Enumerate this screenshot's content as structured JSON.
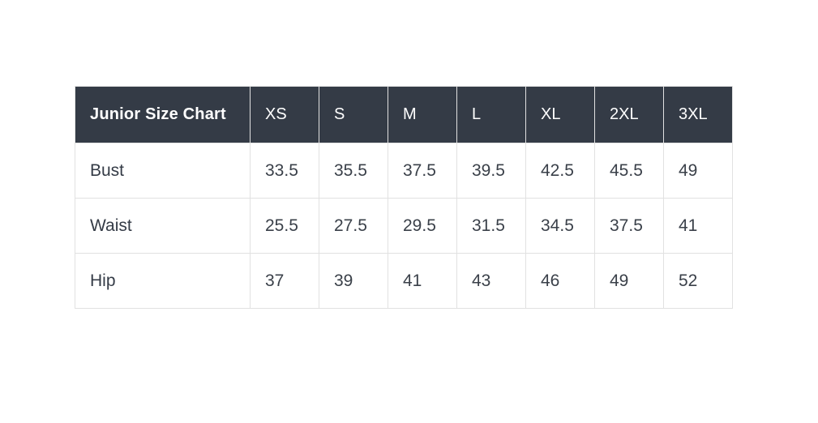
{
  "chart_data": {
    "type": "table",
    "title": "Junior Size Chart",
    "columns": [
      "Junior Size Chart",
      "XS",
      "S",
      "M",
      "L",
      "XL",
      "2XL",
      "3XL"
    ],
    "rows": [
      {
        "label": "Bust",
        "values": [
          "33.5",
          "35.5",
          "37.5",
          "39.5",
          "42.5",
          "45.5",
          "49"
        ]
      },
      {
        "label": "Waist",
        "values": [
          "25.5",
          "27.5",
          "29.5",
          "31.5",
          "34.5",
          "37.5",
          "41"
        ]
      },
      {
        "label": "Hip",
        "values": [
          "37",
          "39",
          "41",
          "43",
          "46",
          "49",
          "52"
        ]
      }
    ],
    "layout_hints": {
      "header_position": "top",
      "grid": true,
      "value_alignment": "left"
    }
  },
  "colors": {
    "page_background": "#ffffff",
    "header_background": "#343b46",
    "header_text": "#ffffff",
    "body_text": "#3a4049",
    "border": "#e1e1e1"
  }
}
